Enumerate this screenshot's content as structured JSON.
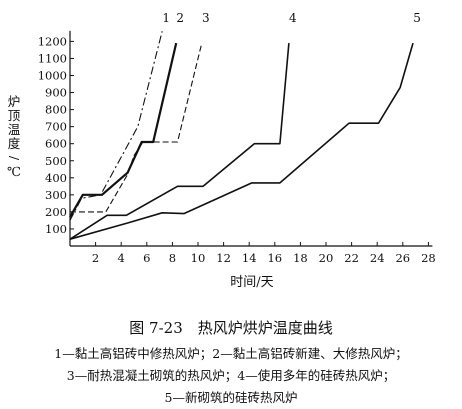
{
  "chart_data": {
    "type": "line",
    "ylabel": "炉顶温度/℃",
    "xlabel": "时间/天",
    "xlim": [
      0,
      28
    ],
    "ylim": [
      0,
      1250
    ],
    "xticks": [
      2,
      4,
      6,
      8,
      10,
      12,
      14,
      16,
      18,
      20,
      22,
      24,
      26,
      28
    ],
    "yticks": [
      100,
      200,
      300,
      400,
      500,
      600,
      700,
      800,
      900,
      1000,
      1100,
      1200
    ],
    "series": [
      {
        "name": "1",
        "style": "dashdot",
        "points": [
          [
            0,
            150
          ],
          [
            0.9,
            280
          ],
          [
            2.4,
            300
          ],
          [
            5.3,
            700
          ],
          [
            7.2,
            1260
          ]
        ]
      },
      {
        "name": "2",
        "style": "solid-bold",
        "points": [
          [
            0,
            170
          ],
          [
            1.0,
            300
          ],
          [
            2.5,
            300
          ],
          [
            4.5,
            430
          ],
          [
            5.6,
            610
          ],
          [
            6.5,
            610
          ],
          [
            8.3,
            1190
          ]
        ]
      },
      {
        "name": "3",
        "style": "dashed",
        "points": [
          [
            0,
            200
          ],
          [
            1.6,
            200
          ],
          [
            2.8,
            200
          ],
          [
            4.5,
            420
          ],
          [
            5.0,
            530
          ],
          [
            5.7,
            610
          ],
          [
            8.4,
            610
          ],
          [
            10.3,
            1190
          ]
        ]
      },
      {
        "name": "4",
        "style": "solid",
        "points": [
          [
            0,
            40
          ],
          [
            2.9,
            180
          ],
          [
            4.4,
            180
          ],
          [
            8.4,
            350
          ],
          [
            10.4,
            350
          ],
          [
            14.4,
            600
          ],
          [
            16.4,
            600
          ],
          [
            17.1,
            1190
          ]
        ]
      },
      {
        "name": "5",
        "style": "solid",
        "points": [
          [
            0,
            40
          ],
          [
            4.5,
            135
          ],
          [
            7.2,
            195
          ],
          [
            8.9,
            190
          ],
          [
            14.2,
            370
          ],
          [
            16.4,
            370
          ],
          [
            21.8,
            720
          ],
          [
            24.1,
            720
          ],
          [
            25.8,
            930
          ],
          [
            26.8,
            1190
          ]
        ]
      }
    ]
  },
  "caption": {
    "title": "图 7-23　热风炉烘炉温度曲线",
    "line1": "1—黏土高铝砖中修热风炉；2—黏土高铝砖新建、大修热风炉；",
    "line2": "3—耐热混凝土砌筑的热风炉；4—使用多年的硅砖热风炉；",
    "line3": "5—新砌筑的硅砖热风炉"
  }
}
